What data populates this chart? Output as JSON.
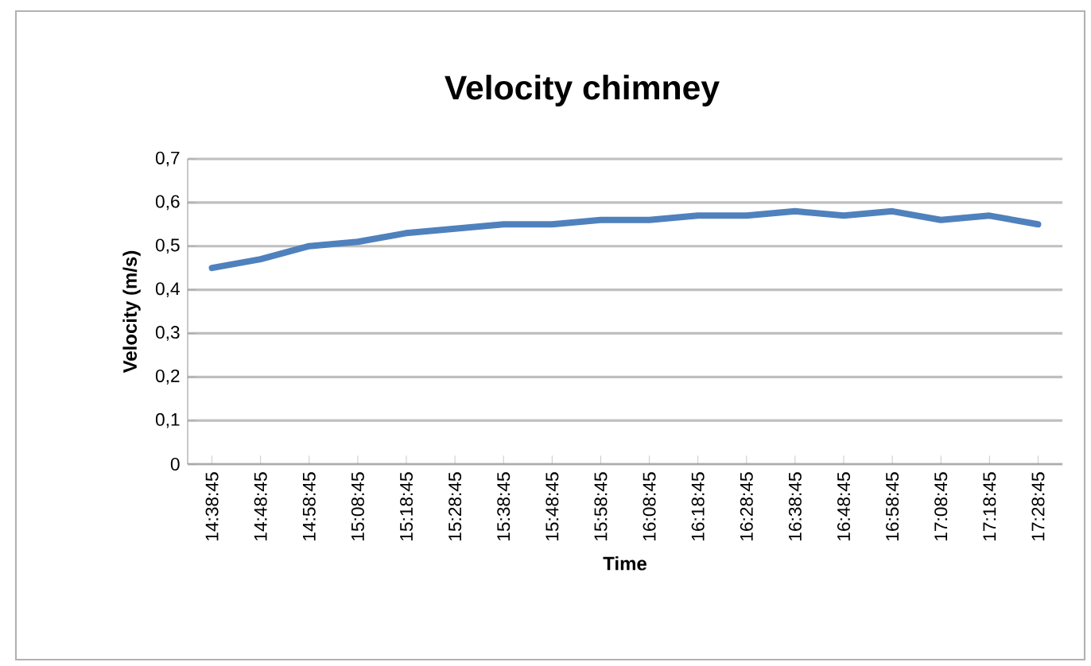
{
  "chart_data": {
    "type": "line",
    "title": "Velocity chimney",
    "xlabel": "Time",
    "ylabel": "Velocity (m/s)",
    "categories": [
      "14:38:45",
      "14:48:45",
      "14:58:45",
      "15:08:45",
      "15:18:45",
      "15:28:45",
      "15:38:45",
      "15:48:45",
      "15:58:45",
      "16:08:45",
      "16:18:45",
      "16:28:45",
      "16:38:45",
      "16:48:45",
      "16:58:45",
      "17:08:45",
      "17:18:45",
      "17:28:45"
    ],
    "series": [
      {
        "color": "#4f81bd",
        "values": [
          0.45,
          0.47,
          0.5,
          0.51,
          0.53,
          0.54,
          0.55,
          0.55,
          0.56,
          0.56,
          0.57,
          0.57,
          0.58,
          0.57,
          0.58,
          0.56,
          0.57,
          0.55
        ]
      }
    ],
    "ylim": [
      0,
      0.7
    ],
    "yticks": [
      {
        "value": 0,
        "label": "0"
      },
      {
        "value": 0.1,
        "label": "0,1"
      },
      {
        "value": 0.2,
        "label": "0,2"
      },
      {
        "value": 0.3,
        "label": "0,3"
      },
      {
        "value": 0.4,
        "label": "0,4"
      },
      {
        "value": 0.5,
        "label": "0,5"
      },
      {
        "value": 0.6,
        "label": "0,6"
      },
      {
        "value": 0.7,
        "label": "0,7"
      }
    ],
    "grid": "y"
  }
}
